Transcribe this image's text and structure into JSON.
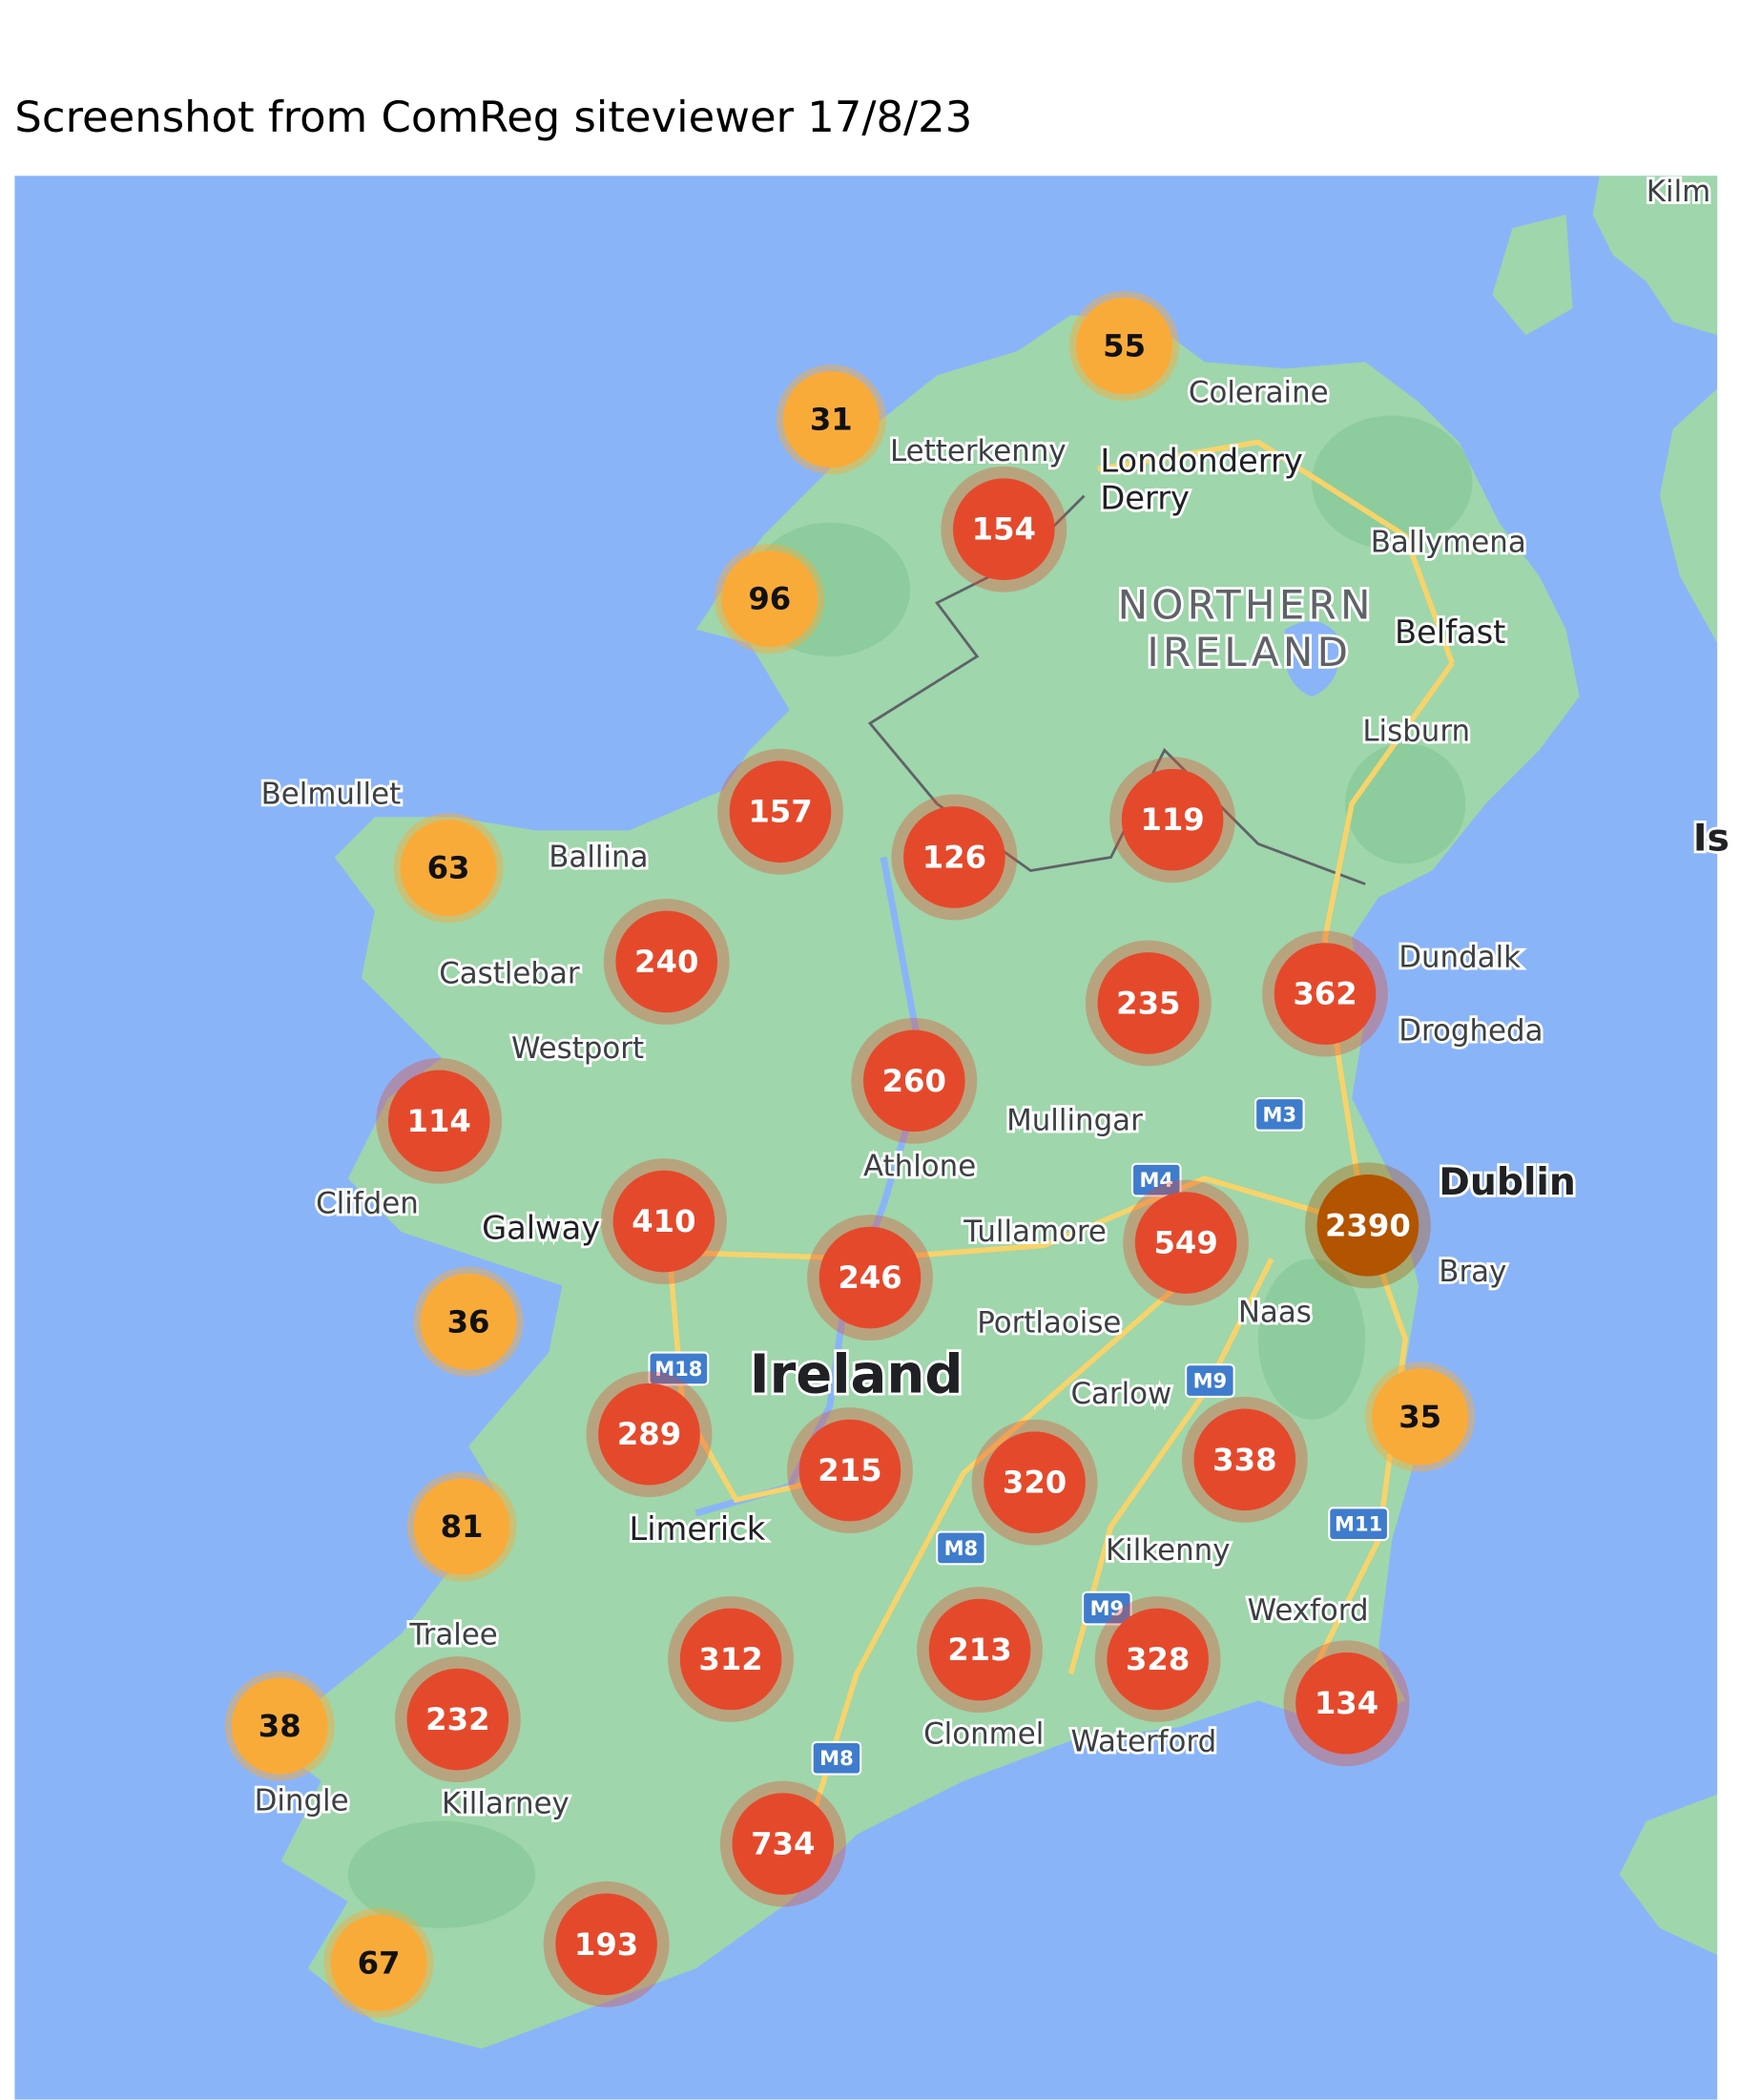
{
  "title": "Screenshot from ComReg siteviewer 17/8/23",
  "colors": {
    "ocean": "#8ab4f8",
    "land": "#9fd6ab",
    "land_dark": "#7fc58f",
    "road": "#f7d36b",
    "cluster_small": "#f9ab3a",
    "cluster_medium": "#e5492c",
    "cluster_large": "#b35400"
  },
  "places": [
    {
      "name": "Kilm",
      "style": "place"
    },
    {
      "name": "Coleraine",
      "style": "place"
    },
    {
      "name": "Letterkenny",
      "style": "place"
    },
    {
      "name": "Londonderry",
      "style": "city"
    },
    {
      "name": "Derry",
      "style": "city"
    },
    {
      "name": "Ballymena",
      "style": "place"
    },
    {
      "name": "NORTHERN",
      "style": "region"
    },
    {
      "name": "IRELAND",
      "style": "region"
    },
    {
      "name": "Belfast",
      "style": "city"
    },
    {
      "name": "Lisburn",
      "style": "place"
    },
    {
      "name": "Belmullet",
      "style": "place"
    },
    {
      "name": "Ballina",
      "style": "place"
    },
    {
      "name": "Castlebar",
      "style": "place"
    },
    {
      "name": "Westport",
      "style": "place"
    },
    {
      "name": "Clifden",
      "style": "place"
    },
    {
      "name": "Galway",
      "style": "city"
    },
    {
      "name": "Athlone",
      "style": "place"
    },
    {
      "name": "Mullingar",
      "style": "place"
    },
    {
      "name": "Tullamore",
      "style": "place"
    },
    {
      "name": "Ireland",
      "style": "big"
    },
    {
      "name": "Portlaoise",
      "style": "place"
    },
    {
      "name": "Naas",
      "style": "place"
    },
    {
      "name": "Dundalk",
      "style": "place"
    },
    {
      "name": "Drogheda",
      "style": "place"
    },
    {
      "name": "Dublin",
      "style": "big-city"
    },
    {
      "name": "Bray",
      "style": "place"
    },
    {
      "name": "Carlow",
      "style": "place"
    },
    {
      "name": "Kilkenny",
      "style": "place"
    },
    {
      "name": "Limerick",
      "style": "city"
    },
    {
      "name": "Clonmel",
      "style": "place"
    },
    {
      "name": "Waterford",
      "style": "place"
    },
    {
      "name": "Wexford",
      "style": "place"
    },
    {
      "name": "Tralee",
      "style": "place"
    },
    {
      "name": "Dingle",
      "style": "place"
    },
    {
      "name": "Killarney",
      "style": "place"
    },
    {
      "name": "Is",
      "style": "big-city"
    }
  ],
  "motorways": [
    "M3",
    "M4",
    "M18",
    "M9",
    "M11",
    "M8",
    "M9",
    "M8"
  ],
  "clusters": [
    {
      "count": "55",
      "level": "small"
    },
    {
      "count": "31",
      "level": "small"
    },
    {
      "count": "154",
      "level": "medium"
    },
    {
      "count": "96",
      "level": "small"
    },
    {
      "count": "157",
      "level": "medium"
    },
    {
      "count": "126",
      "level": "medium"
    },
    {
      "count": "119",
      "level": "medium"
    },
    {
      "count": "63",
      "level": "small"
    },
    {
      "count": "240",
      "level": "medium"
    },
    {
      "count": "235",
      "level": "medium"
    },
    {
      "count": "362",
      "level": "medium"
    },
    {
      "count": "260",
      "level": "medium"
    },
    {
      "count": "114",
      "level": "medium"
    },
    {
      "count": "410",
      "level": "medium"
    },
    {
      "count": "246",
      "level": "medium"
    },
    {
      "count": "549",
      "level": "medium"
    },
    {
      "count": "2390",
      "level": "large"
    },
    {
      "count": "36",
      "level": "small"
    },
    {
      "count": "289",
      "level": "medium"
    },
    {
      "count": "215",
      "level": "medium"
    },
    {
      "count": "320",
      "level": "medium"
    },
    {
      "count": "338",
      "level": "medium"
    },
    {
      "count": "35",
      "level": "small"
    },
    {
      "count": "81",
      "level": "small"
    },
    {
      "count": "312",
      "level": "medium"
    },
    {
      "count": "213",
      "level": "medium"
    },
    {
      "count": "328",
      "level": "medium"
    },
    {
      "count": "134",
      "level": "medium"
    },
    {
      "count": "38",
      "level": "small"
    },
    {
      "count": "232",
      "level": "medium"
    },
    {
      "count": "734",
      "level": "medium"
    },
    {
      "count": "193",
      "level": "medium"
    },
    {
      "count": "67",
      "level": "small"
    }
  ]
}
